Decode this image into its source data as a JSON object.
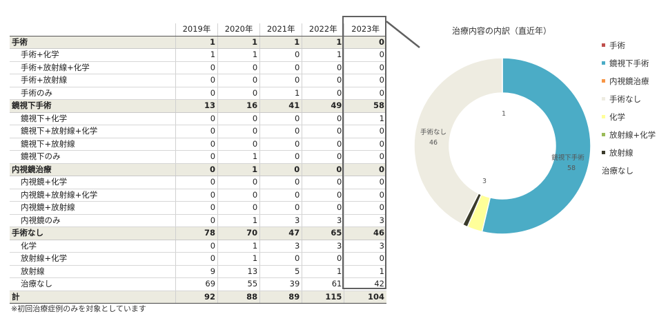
{
  "table": {
    "years": [
      "2019年",
      "2020年",
      "2021年",
      "2022年",
      "2023年"
    ],
    "rows": [
      {
        "type": "group",
        "label": "手術",
        "values": [
          1,
          1,
          1,
          1,
          0
        ]
      },
      {
        "type": "sub",
        "label": "手術+化学",
        "values": [
          1,
          1,
          0,
          1,
          0
        ]
      },
      {
        "type": "sub",
        "label": "手術+放射線+化学",
        "values": [
          0,
          0,
          0,
          0,
          0
        ]
      },
      {
        "type": "sub",
        "label": "手術+放射線",
        "values": [
          0,
          0,
          0,
          0,
          0
        ]
      },
      {
        "type": "sub",
        "label": "手術のみ",
        "values": [
          0,
          0,
          1,
          0,
          0
        ]
      },
      {
        "type": "group",
        "label": "鏡視下手術",
        "values": [
          13,
          16,
          41,
          49,
          58
        ]
      },
      {
        "type": "sub",
        "label": "鏡視下+化学",
        "values": [
          0,
          0,
          0,
          0,
          1
        ]
      },
      {
        "type": "sub",
        "label": "鏡視下+放射線+化学",
        "values": [
          0,
          0,
          0,
          0,
          0
        ]
      },
      {
        "type": "sub",
        "label": "鏡視下+放射線",
        "values": [
          0,
          0,
          0,
          0,
          0
        ]
      },
      {
        "type": "sub",
        "label": "鏡視下のみ",
        "values": [
          0,
          1,
          0,
          0,
          0
        ]
      },
      {
        "type": "group",
        "label": "内視鏡治療",
        "values": [
          0,
          1,
          0,
          0,
          0
        ]
      },
      {
        "type": "sub",
        "label": "内視鏡+化学",
        "values": [
          0,
          0,
          0,
          0,
          0
        ]
      },
      {
        "type": "sub",
        "label": "内視鏡+放射線+化学",
        "values": [
          0,
          0,
          0,
          0,
          0
        ]
      },
      {
        "type": "sub",
        "label": "内視鏡+放射線",
        "values": [
          0,
          0,
          0,
          0,
          0
        ]
      },
      {
        "type": "sub",
        "label": "内視鏡のみ",
        "values": [
          0,
          1,
          3,
          3,
          3
        ]
      },
      {
        "type": "group",
        "label": "手術なし",
        "values": [
          78,
          70,
          47,
          65,
          46
        ]
      },
      {
        "type": "sub",
        "label": "化学",
        "values": [
          0,
          1,
          3,
          3,
          3
        ]
      },
      {
        "type": "sub",
        "label": "放射線+化学",
        "values": [
          0,
          1,
          0,
          0,
          0
        ]
      },
      {
        "type": "sub",
        "label": "放射線",
        "values": [
          9,
          13,
          5,
          1,
          1
        ]
      },
      {
        "type": "sub",
        "label": "治療なし",
        "values": [
          69,
          55,
          39,
          61,
          42
        ]
      },
      {
        "type": "total",
        "label": "計",
        "values": [
          92,
          88,
          89,
          115,
          104
        ]
      }
    ]
  },
  "chart_data": {
    "type": "pie",
    "title": "治療内容の内訳（直近年）",
    "slices": [
      {
        "label": "手術",
        "value": 0,
        "color": "#c0504d",
        "show_label": false
      },
      {
        "label": "鏡視下手術",
        "value": 58,
        "color": "#4bacc6",
        "show_label": true
      },
      {
        "label": "内視鏡治療",
        "value": 0,
        "color": "#f79646",
        "show_label": false
      },
      {
        "label": "化学",
        "value": 3,
        "color": "#ffff99",
        "show_label": true
      },
      {
        "label": "放射線+化学",
        "value": 0,
        "color": "#9bbb59",
        "show_label": false
      },
      {
        "label": "放射線",
        "value": 1,
        "color": "#3b3b2b",
        "show_label": true
      },
      {
        "label": "手術なし",
        "value": 46,
        "color": "#eeece1",
        "show_label": true
      }
    ],
    "slice_labels": [
      "1",
      "鏡視下手術",
      "58",
      "3",
      "手術なし",
      "46"
    ],
    "legend": [
      {
        "label": "手術",
        "color": "#c0504d"
      },
      {
        "label": "鏡視下手術",
        "color": "#4bacc6"
      },
      {
        "label": "内視鏡治療",
        "color": "#f79646"
      },
      {
        "label": "手術なし",
        "color": "#eeece1"
      },
      {
        "label": "化学",
        "color": "#ffff99"
      },
      {
        "label": "放射線+化学",
        "color": "#9bbb59"
      },
      {
        "label": "放射線",
        "color": "#3b3b2b"
      },
      {
        "label": "治療なし",
        "color": ""
      }
    ],
    "legend_position": "right",
    "inner_radius_ratio": 0.6
  },
  "footnote": "※初回治療症例のみを対象としています"
}
